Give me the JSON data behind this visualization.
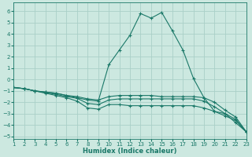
{
  "xlabel": "Humidex (Indice chaleur)",
  "bg_color": "#cce8e0",
  "grid_color": "#aad0c8",
  "line_color": "#1a7868",
  "xlim": [
    1,
    23
  ],
  "ylim": [
    -5.2,
    6.8
  ],
  "xticks": [
    1,
    2,
    3,
    4,
    5,
    6,
    7,
    8,
    9,
    10,
    11,
    12,
    13,
    14,
    15,
    16,
    17,
    18,
    19,
    20,
    21,
    22,
    23
  ],
  "yticks": [
    -5,
    -4,
    -3,
    -2,
    -1,
    0,
    1,
    2,
    3,
    4,
    5,
    6
  ],
  "figsize": [
    3.2,
    2.0
  ],
  "dpi": 100,
  "curves": [
    {
      "x": [
        1,
        2,
        3,
        4,
        5,
        6,
        7,
        8,
        9,
        10,
        11,
        12,
        13,
        14,
        15,
        16,
        17,
        18,
        19,
        20,
        21,
        22,
        23
      ],
      "y": [
        -0.7,
        -0.8,
        -1.0,
        -1.1,
        -1.2,
        -1.4,
        -1.6,
        -1.8,
        -1.9,
        1.3,
        2.6,
        3.9,
        5.8,
        5.4,
        5.9,
        4.3,
        2.6,
        0.1,
        -1.6,
        -2.8,
        -3.0,
        -3.8,
        -4.6
      ]
    },
    {
      "x": [
        1,
        2,
        3,
        4,
        5,
        6,
        7,
        8,
        9,
        10,
        11,
        12,
        13,
        14,
        15,
        16,
        17,
        18,
        19,
        20,
        21,
        22,
        23
      ],
      "y": [
        -0.7,
        -0.8,
        -1.0,
        -1.1,
        -1.2,
        -1.4,
        -1.5,
        -1.7,
        -1.8,
        -1.5,
        -1.4,
        -1.4,
        -1.4,
        -1.4,
        -1.5,
        -1.5,
        -1.5,
        -1.5,
        -1.6,
        -2.0,
        -2.7,
        -3.3,
        -4.6
      ]
    },
    {
      "x": [
        1,
        2,
        3,
        4,
        5,
        6,
        7,
        8,
        9,
        10,
        11,
        12,
        13,
        14,
        15,
        16,
        17,
        18,
        19,
        20,
        21,
        22,
        23
      ],
      "y": [
        -0.7,
        -0.8,
        -1.0,
        -1.15,
        -1.3,
        -1.5,
        -1.65,
        -2.1,
        -2.2,
        -1.8,
        -1.7,
        -1.7,
        -1.7,
        -1.7,
        -1.7,
        -1.7,
        -1.7,
        -1.7,
        -1.9,
        -2.4,
        -3.0,
        -3.5,
        -4.6
      ]
    },
    {
      "x": [
        1,
        2,
        3,
        4,
        5,
        6,
        7,
        8,
        9,
        10,
        11,
        12,
        13,
        14,
        15,
        16,
        17,
        18,
        19,
        20,
        21,
        22,
        23
      ],
      "y": [
        -0.7,
        -0.8,
        -1.0,
        -1.2,
        -1.4,
        -1.6,
        -1.9,
        -2.5,
        -2.6,
        -2.2,
        -2.2,
        -2.3,
        -2.3,
        -2.3,
        -2.3,
        -2.3,
        -2.3,
        -2.3,
        -2.5,
        -2.8,
        -3.2,
        -3.6,
        -4.6
      ]
    }
  ]
}
